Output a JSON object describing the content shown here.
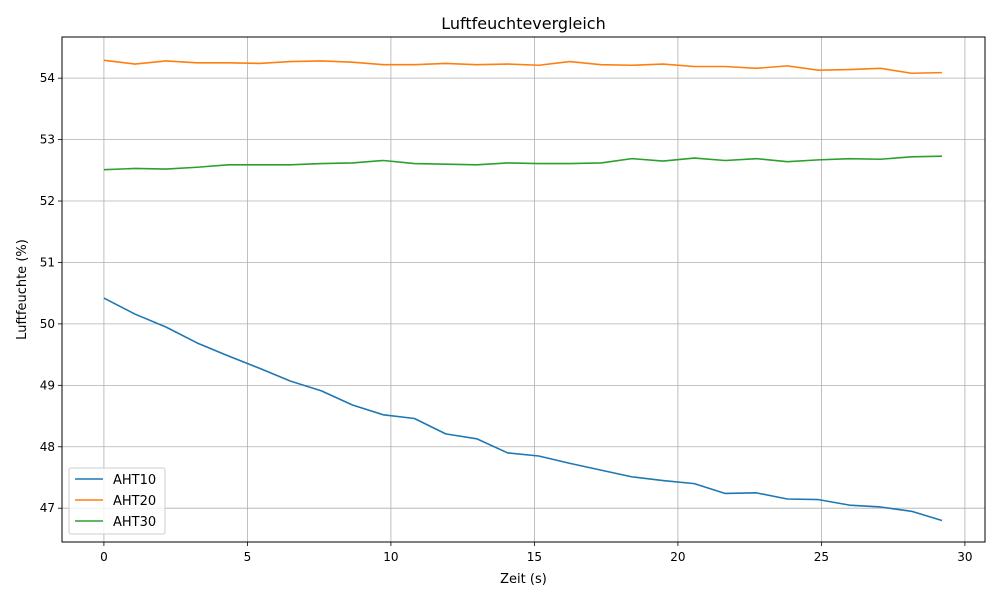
{
  "chart_data": {
    "type": "line",
    "title": "Luftfeuchtevergleich",
    "xlabel": "Zeit (s)",
    "ylabel": "Luftfeuchte (%)",
    "xlim": [
      -1.46,
      30.7
    ],
    "ylim": [
      46.45,
      54.67
    ],
    "xticks": [
      0,
      5,
      10,
      15,
      20,
      25,
      30
    ],
    "yticks": [
      47,
      48,
      49,
      50,
      51,
      52,
      53,
      54
    ],
    "grid": true,
    "legend_position": "lower-left",
    "x": [
      0.0,
      1.08,
      2.16,
      3.25,
      4.33,
      5.41,
      6.49,
      7.58,
      8.66,
      9.74,
      10.82,
      11.91,
      12.99,
      14.07,
      15.15,
      16.24,
      17.32,
      18.4,
      19.48,
      20.57,
      21.65,
      22.73,
      23.81,
      24.9,
      25.98,
      27.06,
      28.14,
      29.2
    ],
    "series": [
      {
        "name": "AHT10",
        "color": "#1f77b4",
        "values": [
          50.42,
          50.16,
          49.95,
          49.69,
          49.48,
          49.28,
          49.07,
          48.91,
          48.68,
          48.52,
          48.46,
          48.21,
          48.13,
          47.9,
          47.85,
          47.73,
          47.62,
          47.51,
          47.45,
          47.4,
          47.24,
          47.25,
          47.15,
          47.14,
          47.05,
          47.02,
          46.95,
          46.8
        ]
      },
      {
        "name": "AHT20",
        "color": "#ff7f0e",
        "values": [
          54.29,
          54.23,
          54.28,
          54.25,
          54.25,
          54.24,
          54.27,
          54.28,
          54.26,
          54.22,
          54.22,
          54.24,
          54.22,
          54.23,
          54.21,
          54.27,
          54.22,
          54.21,
          54.23,
          54.19,
          54.19,
          54.16,
          54.2,
          54.13,
          54.14,
          54.16,
          54.08,
          54.09
        ]
      },
      {
        "name": "AHT30",
        "color": "#2ca02c",
        "values": [
          52.51,
          52.53,
          52.52,
          52.55,
          52.59,
          52.59,
          52.59,
          52.61,
          52.62,
          52.66,
          52.61,
          52.6,
          52.59,
          52.62,
          52.61,
          52.61,
          52.62,
          52.69,
          52.65,
          52.7,
          52.66,
          52.69,
          52.64,
          52.67,
          52.69,
          52.68,
          52.72,
          52.73
        ]
      }
    ]
  }
}
